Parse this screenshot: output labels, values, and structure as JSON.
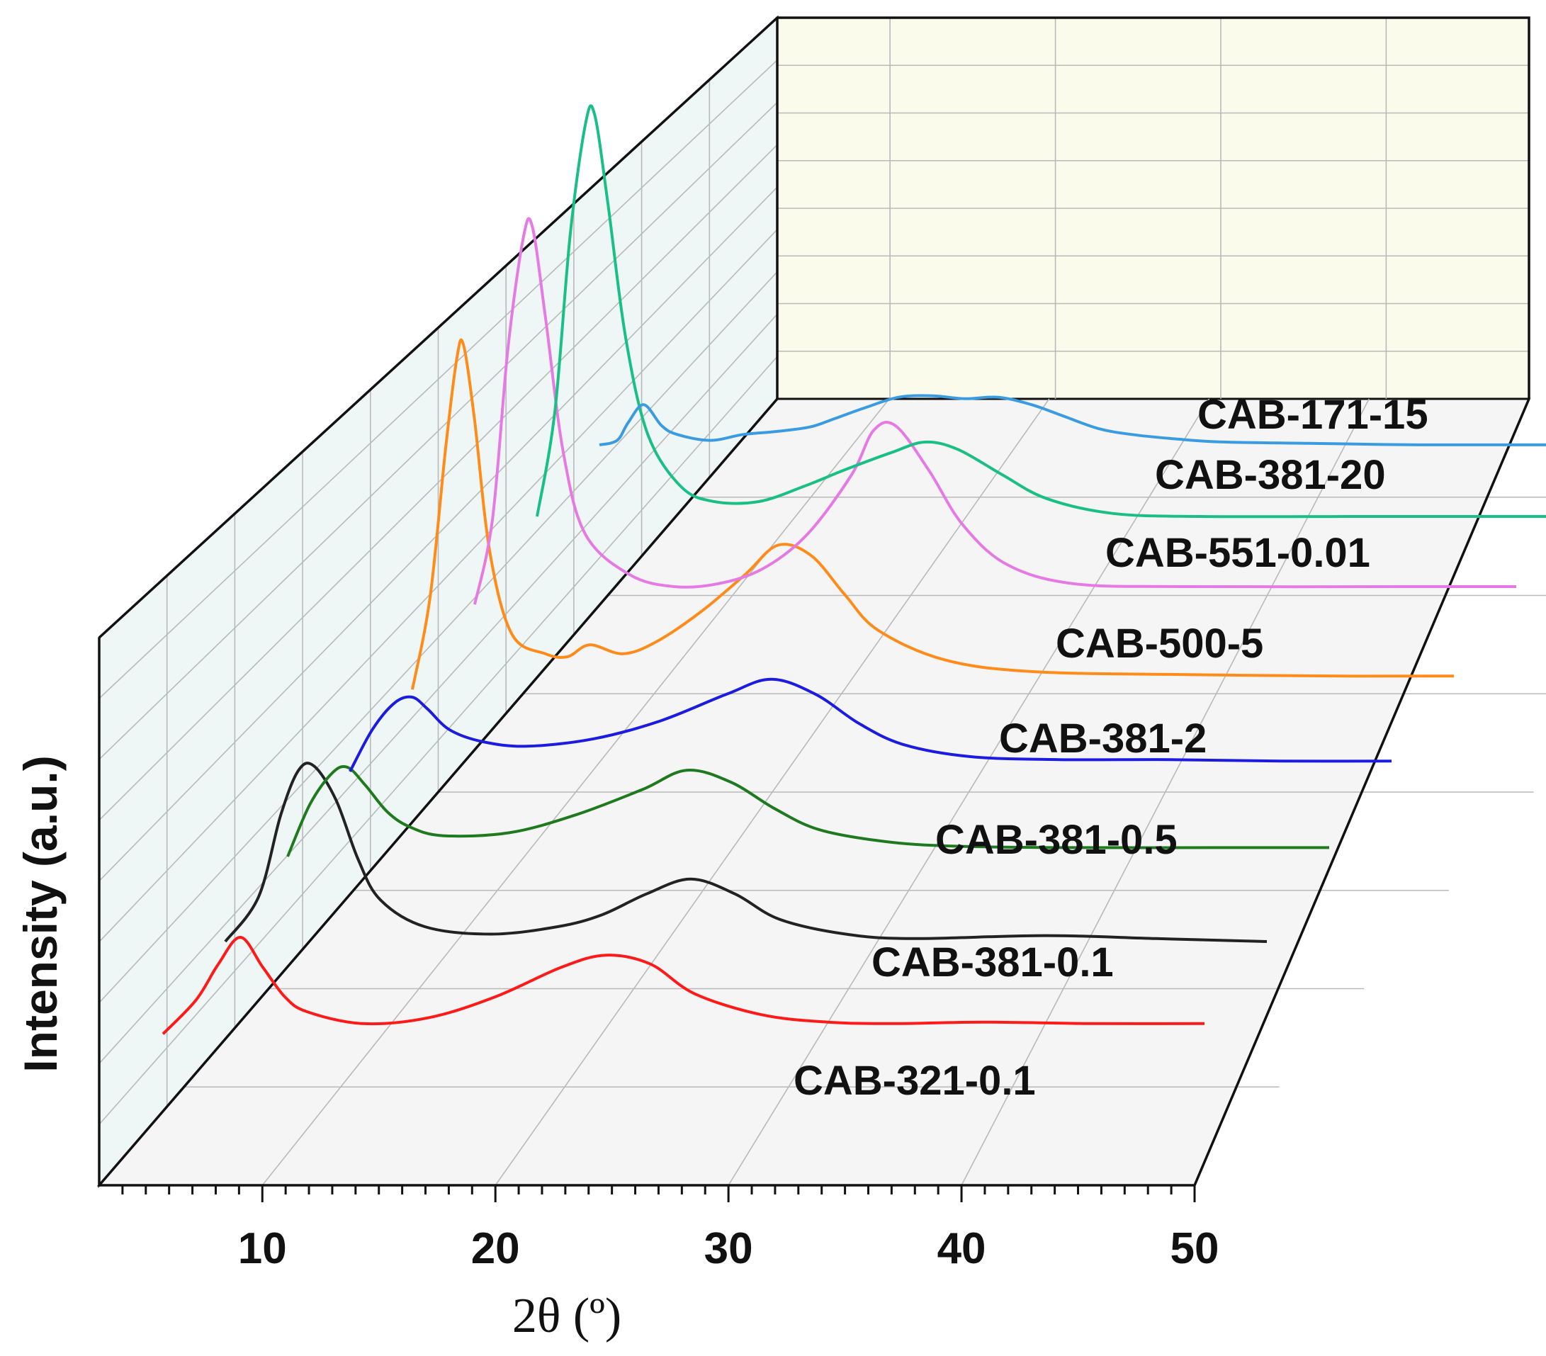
{
  "chart_data": {
    "type": "line",
    "style": "3d-waterfall",
    "xlabel": "2θ (º)",
    "ylabel": "Intensity (a.u.)",
    "xlim": [
      3,
      50
    ],
    "xticks": [
      "10",
      "20",
      "30",
      "40",
      "50"
    ],
    "grid": true,
    "colors": {
      "left_wall": "#eef7f5",
      "back_wall": "#fbfbeb",
      "floor": "#f5f5f5",
      "grid": "#b9b9b9",
      "axis": "#111111"
    },
    "series": [
      {
        "name": "CAB-321-0.1",
        "color": "#ff1a1a",
        "x": [
          3,
          4.5,
          5.5,
          6.5,
          7.5,
          8.5,
          9.5,
          12,
          15,
          18,
          21,
          23,
          25,
          27,
          30,
          33,
          36,
          40,
          45,
          50
        ],
        "y": [
          5,
          28,
          52,
          70,
          50,
          30,
          20,
          12,
          16,
          30,
          50,
          58,
          52,
          32,
          18,
          13,
          12,
          13,
          12,
          12
        ]
      },
      {
        "name": "CAB-381-0.1",
        "color": "#222222",
        "x": [
          3,
          4.5,
          5.5,
          6.3,
          7,
          8,
          9,
          10,
          12,
          15,
          18,
          20,
          22,
          24,
          26,
          28,
          31,
          34,
          40,
          45,
          50
        ],
        "y": [
          10,
          40,
          95,
          125,
          128,
          105,
          65,
          38,
          20,
          15,
          20,
          28,
          42,
          52,
          42,
          25,
          15,
          12,
          14,
          12,
          10
        ]
      },
      {
        "name": "CAB-381-0.5",
        "color": "#1f7a1f",
        "x": [
          3,
          4,
          5,
          5.7,
          6.5,
          7.5,
          8.5,
          10,
          13,
          16,
          19,
          21,
          23,
          25,
          27,
          30,
          33,
          38,
          45,
          50
        ],
        "y": [
          10,
          45,
          66,
          70,
          58,
          40,
          30,
          24,
          26,
          38,
          55,
          68,
          60,
          42,
          28,
          20,
          17,
          16,
          16,
          16
        ]
      },
      {
        "name": "CAB-381-2",
        "color": "#1c1ce0",
        "x": [
          3,
          4,
          5,
          5.8,
          6.5,
          7.5,
          9,
          11,
          14,
          17,
          20,
          22,
          24,
          26,
          28,
          31,
          35,
          40,
          45,
          50
        ],
        "y": [
          10,
          38,
          56,
          60,
          52,
          38,
          30,
          27,
          32,
          44,
          62,
          72,
          62,
          42,
          28,
          20,
          18,
          18,
          17,
          17
        ]
      },
      {
        "name": "CAB-500-5",
        "color": "#ff8c1a",
        "x": [
          3,
          3.8,
          4.5,
          5,
          5.3,
          5.8,
          6.5,
          7.5,
          9,
          10,
          11,
          12.5,
          14,
          16,
          18,
          19.5,
          21,
          22.5,
          24,
          27,
          31,
          38,
          45,
          50
        ],
        "y": [
          8,
          70,
          170,
          230,
          240,
          190,
          100,
          45,
          32,
          30,
          38,
          32,
          40,
          60,
          85,
          105,
          98,
          72,
          48,
          28,
          20,
          18,
          17,
          17
        ]
      },
      {
        "name": "CAB-551-0.01",
        "color": "#e57ae5",
        "x": [
          3,
          3.8,
          4.5,
          5.2,
          5.6,
          6.2,
          7,
          8,
          10,
          12,
          14,
          16,
          18,
          20,
          21,
          22,
          23.5,
          25,
          27,
          30,
          35,
          45,
          50
        ],
        "y": [
          8,
          65,
          180,
          255,
          262,
          200,
          110,
          55,
          28,
          20,
          22,
          32,
          55,
          95,
          125,
          128,
          98,
          62,
          35,
          22,
          20,
          20,
          20
        ]
      },
      {
        "name": "CAB-381-20",
        "color": "#1abf85",
        "x": [
          3,
          3.8,
          4.5,
          5.2,
          5.6,
          6.2,
          7,
          8,
          9.5,
          11,
          13,
          15,
          17,
          19,
          20.5,
          22,
          24,
          26,
          29,
          33,
          40,
          45,
          50
        ],
        "y": [
          10,
          80,
          200,
          275,
          280,
          220,
          130,
          65,
          30,
          20,
          20,
          30,
          42,
          53,
          60,
          55,
          38,
          22,
          12,
          10,
          10,
          10,
          10
        ]
      },
      {
        "name": "CAB-171-15",
        "color": "#3a9be0",
        "x": [
          3,
          3.8,
          4.3,
          5,
          5.8,
          6.5,
          8,
          9.5,
          11,
          12.5,
          13.5,
          15,
          16.5,
          18,
          19.5,
          21,
          22.5,
          24,
          25.5,
          27,
          29,
          31,
          35,
          40,
          45,
          50
        ],
        "y": [
          1,
          4,
          16,
          28,
          14,
          8,
          4,
          8,
          10,
          13,
          18,
          26,
          33,
          34,
          32,
          33,
          28,
          20,
          12,
          8,
          5,
          3,
          2,
          1,
          1,
          1
        ]
      }
    ]
  }
}
